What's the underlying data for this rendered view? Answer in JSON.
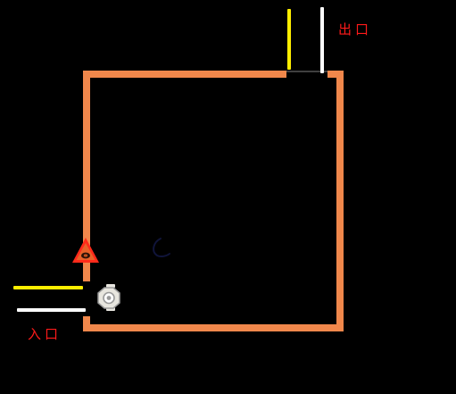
{
  "labels": {
    "exit": "出口",
    "entrance": "入口"
  },
  "colors": {
    "background": "#000000",
    "wall": "#f0874b",
    "wall_edge": "#ffffff",
    "yellow_line": "#ffee00",
    "white_line": "#ffffff",
    "label_text": "#ff1a1a",
    "warning_fill": "#e8622a",
    "warning_border": "#ff2a1a",
    "robot_body": "#e8e6df",
    "robot_outline": "#9a9a9a",
    "faint_mark": "#10143a"
  },
  "icons": {
    "warning": "warning-triangle-icon",
    "robot": "robot-cleaner-icon",
    "mark": "arc-mark-icon"
  }
}
